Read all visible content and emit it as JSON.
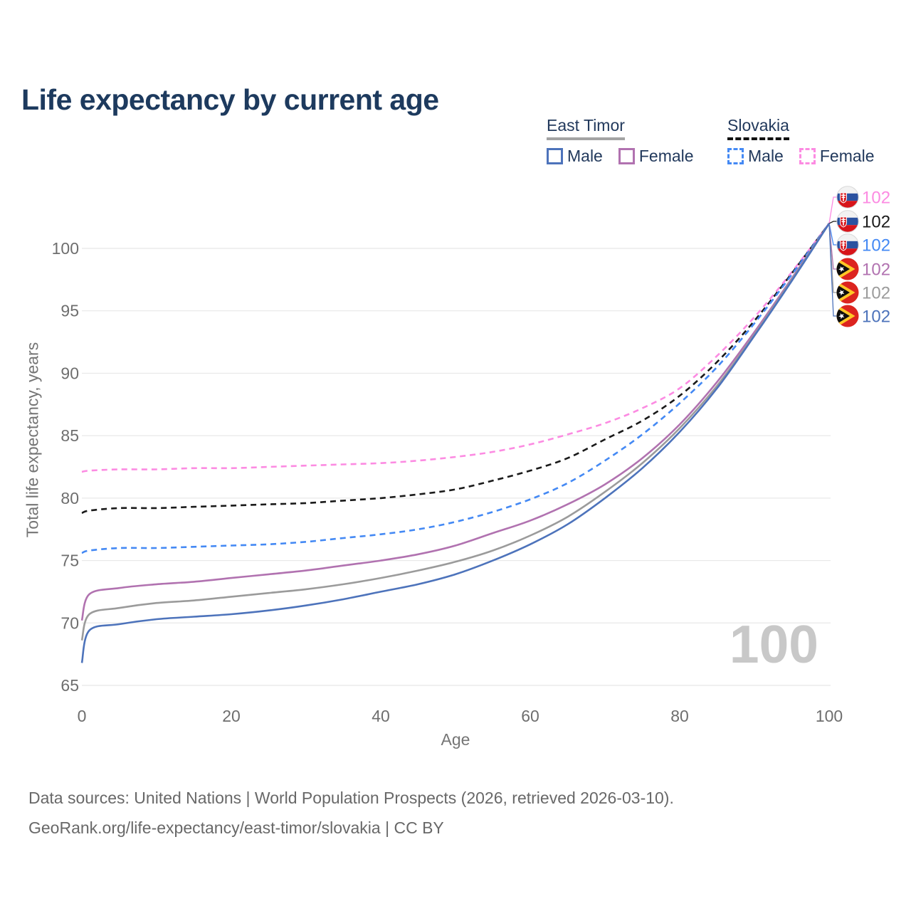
{
  "title": "Life expectancy by current age",
  "watermark": "100",
  "legend": {
    "groups": [
      {
        "label": "East Timor",
        "style": "solid",
        "underline_color": "#a3a3a3",
        "items": [
          {
            "label": "Male",
            "color": "#4d73bb"
          },
          {
            "label": "Female",
            "color": "#b172b0"
          }
        ]
      },
      {
        "label": "Slovakia",
        "style": "dashed",
        "underline_color": "#111111",
        "items": [
          {
            "label": "Male",
            "color": "#4489f4"
          },
          {
            "label": "Female",
            "color": "#fc8be2"
          }
        ]
      }
    ]
  },
  "footer": {
    "line1": "Data sources: United Nations | World Population Prospects (2026, retrieved 2026-03-10).",
    "line2": "GeoRank.org/life-expectancy/east-timor/slovakia | CC BY"
  },
  "chart_data": {
    "type": "line",
    "title": "Life expectancy by current age",
    "xlabel": "Age",
    "ylabel": "Total life expectancy, years",
    "xlim": [
      0,
      100
    ],
    "ylim": [
      65,
      103.5
    ],
    "x_ticks": [
      0,
      20,
      40,
      60,
      80,
      100
    ],
    "y_ticks": [
      65,
      70,
      75,
      80,
      85,
      90,
      95,
      100
    ],
    "grid": "horizontal",
    "legend_position": "top-right",
    "ages": [
      0,
      1,
      5,
      10,
      15,
      20,
      25,
      30,
      35,
      40,
      45,
      50,
      55,
      60,
      65,
      70,
      75,
      80,
      85,
      90,
      95,
      100
    ],
    "series": [
      {
        "name": "Slovakia Female",
        "country": "Slovakia",
        "sex": "Female",
        "style": "dashed",
        "color": "#fc8be2",
        "flag": "slovakia",
        "end_label": "102",
        "values": [
          82.1,
          82.2,
          82.3,
          82.3,
          82.4,
          82.4,
          82.5,
          82.6,
          82.7,
          82.8,
          83.0,
          83.3,
          83.7,
          84.3,
          85.1,
          86.0,
          87.2,
          88.8,
          91.4,
          94.5,
          98.1,
          102
        ]
      },
      {
        "name": "Slovakia Both sexes",
        "country": "Slovakia",
        "sex": "Both",
        "style": "dashed",
        "color": "#1a1a1a",
        "flag": "slovakia",
        "end_label": "102",
        "values": [
          78.8,
          79.0,
          79.2,
          79.2,
          79.3,
          79.4,
          79.5,
          79.6,
          79.8,
          80.0,
          80.3,
          80.7,
          81.4,
          82.2,
          83.2,
          84.7,
          86.2,
          88.2,
          90.9,
          94.2,
          98.0,
          102
        ]
      },
      {
        "name": "Slovakia Male",
        "country": "Slovakia",
        "sex": "Male",
        "style": "dashed",
        "color": "#4489f4",
        "flag": "slovakia",
        "end_label": "102",
        "values": [
          75.6,
          75.8,
          76.0,
          76.0,
          76.1,
          76.2,
          76.3,
          76.5,
          76.8,
          77.1,
          77.5,
          78.1,
          78.9,
          79.9,
          81.2,
          83.0,
          85.1,
          87.6,
          90.5,
          94.0,
          97.9,
          102
        ]
      },
      {
        "name": "East Timor Female",
        "country": "East Timor",
        "sex": "Female",
        "style": "solid",
        "color": "#b172b0",
        "flag": "east-timor",
        "end_label": "102",
        "values": [
          70.2,
          72.3,
          72.8,
          73.1,
          73.3,
          73.6,
          73.9,
          74.2,
          74.6,
          75.0,
          75.5,
          76.2,
          77.2,
          78.2,
          79.5,
          81.1,
          83.2,
          85.9,
          89.3,
          93.3,
          97.6,
          102
        ]
      },
      {
        "name": "East Timor Both sexes",
        "country": "East Timor",
        "sex": "Both",
        "style": "solid",
        "color": "#9b9b9b",
        "flag": "east-timor",
        "end_label": "102",
        "values": [
          68.6,
          70.7,
          71.2,
          71.6,
          71.8,
          72.1,
          72.4,
          72.7,
          73.1,
          73.6,
          74.2,
          74.9,
          75.8,
          77.0,
          78.5,
          80.5,
          82.8,
          85.6,
          89.0,
          93.1,
          97.5,
          102
        ]
      },
      {
        "name": "East Timor Male",
        "country": "East Timor",
        "sex": "Male",
        "style": "solid",
        "color": "#4d73bb",
        "flag": "east-timor",
        "end_label": "102",
        "values": [
          66.8,
          69.4,
          69.9,
          70.3,
          70.5,
          70.7,
          71.0,
          71.4,
          71.9,
          72.5,
          73.1,
          73.9,
          75.0,
          76.3,
          77.9,
          80.0,
          82.4,
          85.3,
          88.8,
          93.0,
          97.4,
          102
        ]
      }
    ]
  }
}
